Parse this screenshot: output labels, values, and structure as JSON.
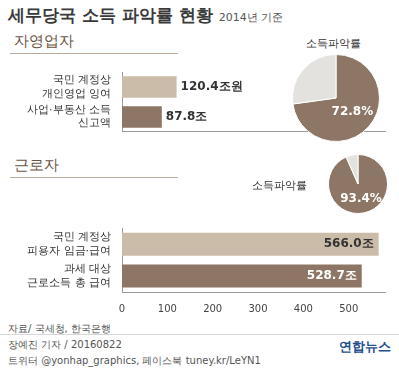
{
  "title": "세무당국 소득 파악률 현황",
  "subtitle": "2014년 기준",
  "chart_data": [
    {
      "type": "bar",
      "title": "자영업자",
      "orientation": "horizontal",
      "categories": [
        "국민 계정상\n개인영업 잉여",
        "사업·부동산 소득\n신고액"
      ],
      "values": [
        120.4,
        87.8
      ],
      "value_labels": [
        "120.4조원",
        "87.8조"
      ],
      "colors": [
        "#cbbca9",
        "#8d7665"
      ],
      "xlim": [
        0,
        580
      ],
      "tick_labels": "y",
      "data_labels": true,
      "grid": false
    },
    {
      "type": "pie",
      "title": "소득파악률",
      "values": [
        72.8,
        27.2
      ],
      "value_labels": [
        "72.8%",
        null
      ],
      "colors": [
        "#8d7665",
        "#e4e2df"
      ],
      "data_labels": true
    },
    {
      "type": "bar",
      "title": "근로자",
      "orientation": "horizontal",
      "categories": [
        "국민 계정상\n피용자 임금·급여",
        "과세 대상\n근로소득 총 급여"
      ],
      "values": [
        566.0,
        528.7
      ],
      "value_labels": [
        "566.0조",
        "528.7조"
      ],
      "colors": [
        "#cbbca9",
        "#8d7665"
      ],
      "xlim": [
        0,
        580
      ],
      "xticks": [
        0,
        100,
        200,
        300,
        400,
        500
      ],
      "data_labels": true,
      "grid": false
    },
    {
      "type": "pie",
      "title": "소득파악률",
      "values": [
        93.4,
        6.6
      ],
      "value_labels": [
        "93.4%",
        null
      ],
      "colors": [
        "#8d7665",
        "#e4e2df"
      ],
      "data_labels": true
    }
  ],
  "source": "자료/ 국세청, 한국은행",
  "credit": "장예진 기자 / 20160822",
  "sns": "트위터 @yonhap_graphics, 페이스북 tuney.kr/LeYN1",
  "publisher": "연합뉴스"
}
